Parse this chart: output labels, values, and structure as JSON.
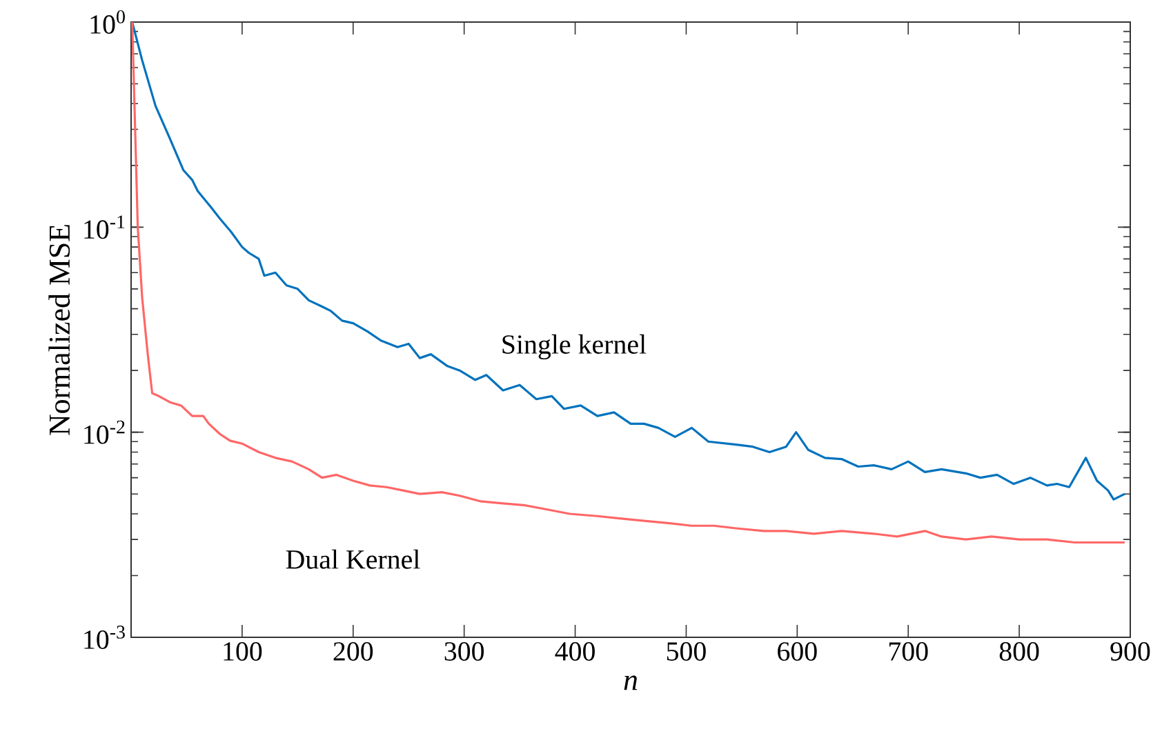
{
  "chart_data": {
    "type": "line",
    "xlabel": "n",
    "ylabel": "Normalized MSE",
    "log": "y",
    "xlim": [
      0,
      900
    ],
    "ylim": [
      0.001,
      1
    ],
    "xticks": [
      100,
      200,
      300,
      400,
      500,
      600,
      700,
      800,
      900
    ],
    "yticks": [
      {
        "value": 0.001,
        "label": "10$^{-3}$"
      },
      {
        "value": 0.01,
        "label": "10$^{-2}$"
      },
      {
        "value": 0.1,
        "label": "10$^{-1}$"
      },
      {
        "value": 1,
        "label": "10$^{0}$"
      }
    ],
    "series": [
      {
        "name": "Single kernel",
        "color": "#0072bd",
        "x": [
          1,
          10,
          22,
          35,
          47,
          55,
          60,
          72,
          80,
          90,
          100,
          106,
          115,
          120,
          130,
          140,
          150,
          160,
          172,
          180,
          190,
          200,
          213,
          225,
          240,
          250,
          260,
          270,
          285,
          296,
          310,
          320,
          335,
          350,
          365,
          379,
          390,
          405,
          420,
          435,
          450,
          462,
          475,
          490,
          505,
          520,
          545,
          560,
          575,
          590,
          599,
          610,
          625,
          640,
          655,
          669,
          685,
          700,
          715,
          730,
          752,
          765,
          780,
          795,
          810,
          825,
          834,
          845,
          860,
          870,
          880,
          885,
          895
        ],
        "values": [
          1.0,
          0.65,
          0.39,
          0.27,
          0.19,
          0.17,
          0.15,
          0.125,
          0.11,
          0.095,
          0.08,
          0.075,
          0.07,
          0.058,
          0.06,
          0.052,
          0.05,
          0.044,
          0.041,
          0.039,
          0.035,
          0.034,
          0.031,
          0.028,
          0.026,
          0.027,
          0.023,
          0.024,
          0.021,
          0.02,
          0.018,
          0.019,
          0.016,
          0.017,
          0.0145,
          0.015,
          0.013,
          0.0135,
          0.012,
          0.0125,
          0.011,
          0.011,
          0.0105,
          0.0095,
          0.0105,
          0.009,
          0.0087,
          0.0085,
          0.008,
          0.0085,
          0.01,
          0.0082,
          0.0075,
          0.0074,
          0.0068,
          0.0069,
          0.0066,
          0.0072,
          0.0064,
          0.0066,
          0.0063,
          0.006,
          0.0062,
          0.0056,
          0.006,
          0.0055,
          0.0056,
          0.0054,
          0.0075,
          0.0058,
          0.0052,
          0.0047,
          0.005
        ]
      },
      {
        "name": "Dual Kernel",
        "color": "#ff6666",
        "x": [
          1,
          3,
          6,
          10,
          15,
          19,
          25,
          35,
          45,
          55,
          65,
          70,
          80,
          89,
          100,
          115,
          130,
          145,
          160,
          172,
          185,
          200,
          215,
          230,
          245,
          260,
          280,
          296,
          315,
          335,
          355,
          375,
          395,
          420,
          440,
          462,
          485,
          505,
          525,
          545,
          570,
          590,
          615,
          640,
          669,
          690,
          715,
          730,
          752,
          775,
          800,
          825,
          850,
          875,
          895
        ],
        "values": [
          1.0,
          0.4,
          0.1,
          0.045,
          0.024,
          0.0155,
          0.015,
          0.014,
          0.0135,
          0.012,
          0.012,
          0.011,
          0.0098,
          0.0091,
          0.0088,
          0.008,
          0.0075,
          0.0072,
          0.0066,
          0.006,
          0.0062,
          0.0058,
          0.0055,
          0.0054,
          0.0052,
          0.005,
          0.0051,
          0.0049,
          0.0046,
          0.0045,
          0.0044,
          0.0042,
          0.004,
          0.0039,
          0.0038,
          0.0037,
          0.0036,
          0.0035,
          0.0035,
          0.0034,
          0.0033,
          0.0033,
          0.0032,
          0.0033,
          0.0032,
          0.0031,
          0.0033,
          0.0031,
          0.003,
          0.0031,
          0.003,
          0.003,
          0.0029,
          0.0029,
          0.0029
        ]
      }
    ]
  }
}
